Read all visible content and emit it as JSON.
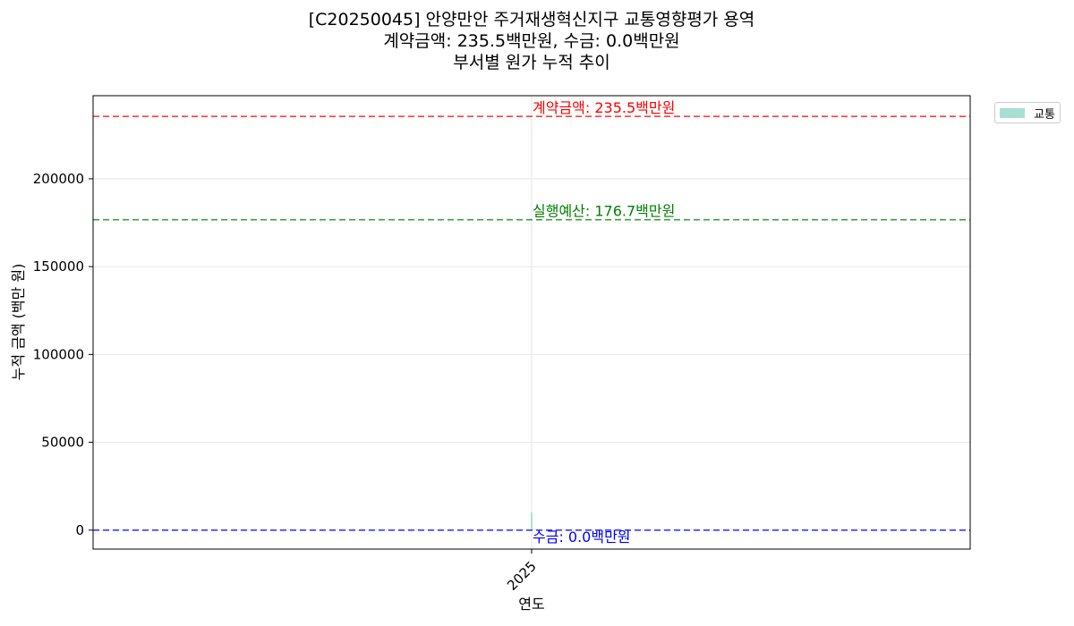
{
  "chart_data": {
    "type": "area",
    "title_lines": [
      "[C20250045] 안양만안 주거재생혁신지구 교통영향평가 용역",
      "계약금액: 235.5백만원, 수금: 0.0백만원",
      "부서별 원가 누적 추이"
    ],
    "xlabel": "연도",
    "ylabel": "누적 금액 (백만 원)",
    "categories": [
      "2025"
    ],
    "series": [
      {
        "name": "교통",
        "values": [
          10000
        ],
        "color": "#a8dfd2"
      }
    ],
    "yticks": [
      0,
      50000,
      100000,
      150000,
      200000
    ],
    "ylim": [
      -10800,
      247300
    ],
    "grid": true,
    "legend_position": "outside-top-right",
    "reference_lines": [
      {
        "value": 235500,
        "label": "계약금액: 235.5백만원",
        "color": "#ff0000"
      },
      {
        "value": 176700,
        "label": "실행예산: 176.7백만원",
        "color": "#008000"
      },
      {
        "value": 0,
        "label": "수금: 0.0백만원",
        "color": "#0000ff"
      }
    ]
  }
}
